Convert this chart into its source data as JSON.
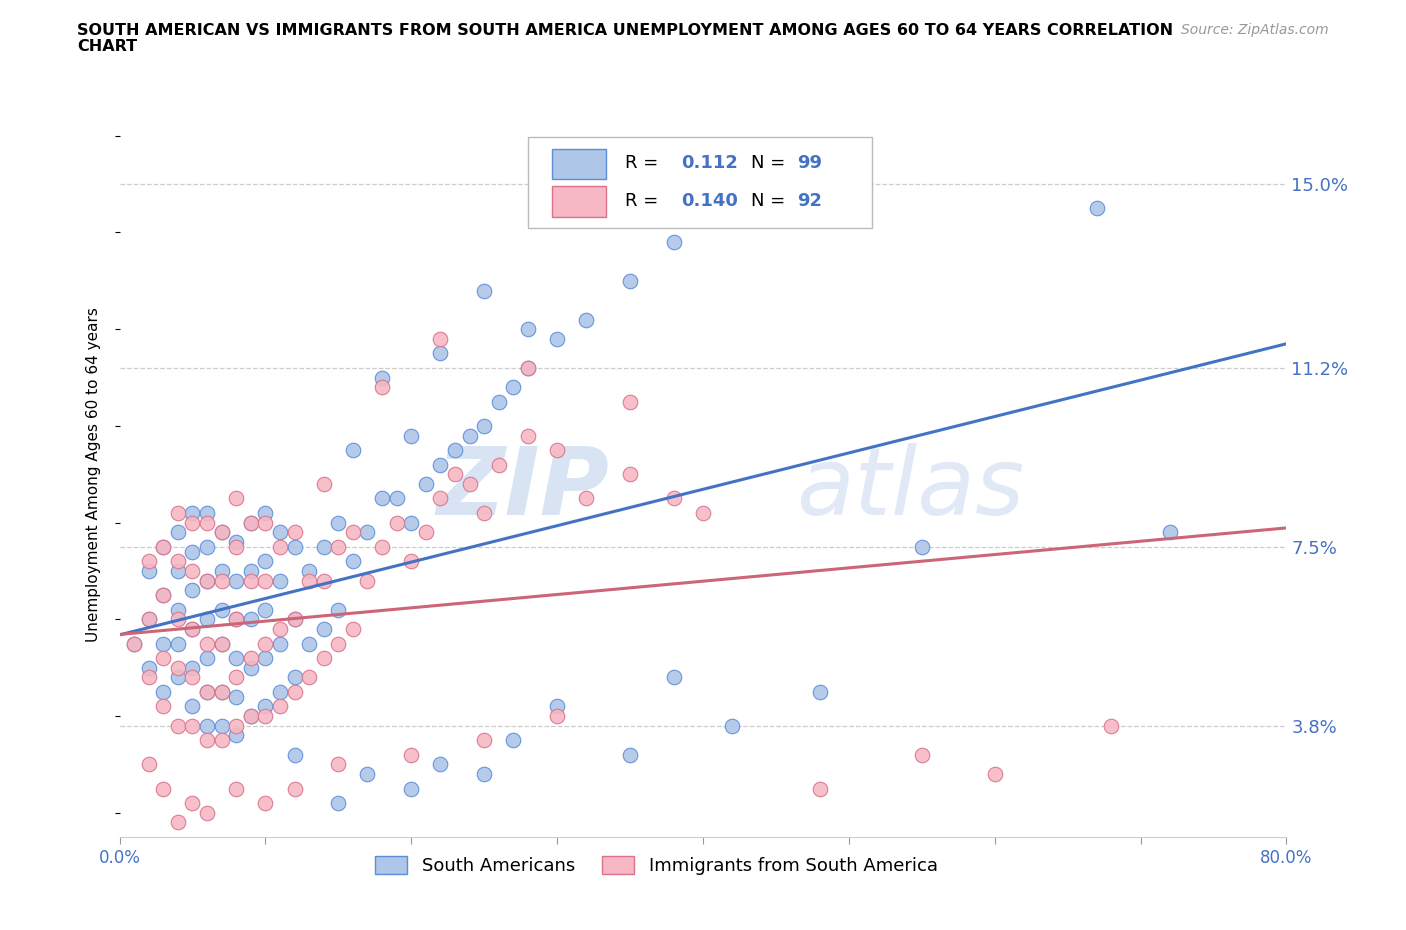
{
  "title_line1": "SOUTH AMERICAN VS IMMIGRANTS FROM SOUTH AMERICA UNEMPLOYMENT AMONG AGES 60 TO 64 YEARS CORRELATION",
  "title_line2": "CHART",
  "source_text": "Source: ZipAtlas.com",
  "ylabel": "Unemployment Among Ages 60 to 64 years",
  "xlim": [
    0,
    0.8
  ],
  "ylim": [
    0.015,
    0.165
  ],
  "yticks": [
    0.038,
    0.075,
    0.112,
    0.15
  ],
  "ytick_labels": [
    "3.8%",
    "7.5%",
    "11.2%",
    "15.0%"
  ],
  "xticks": [
    0.0,
    0.1,
    0.2,
    0.3,
    0.4,
    0.5,
    0.6,
    0.7,
    0.8
  ],
  "xtick_labels": [
    "0.0%",
    "",
    "",
    "",
    "",
    "",
    "",
    "",
    "80.0%"
  ],
  "blue_fill": "#aec6e8",
  "blue_edge": "#5b8dd9",
  "pink_fill": "#f5b8c4",
  "pink_edge": "#d9728a",
  "blue_line_color": "#4472c4",
  "pink_line_color": "#cc6677",
  "R_blue": 0.112,
  "N_blue": 99,
  "R_pink": 0.14,
  "N_pink": 92,
  "blue_scatter_x": [
    0.01,
    0.02,
    0.02,
    0.02,
    0.03,
    0.03,
    0.03,
    0.03,
    0.04,
    0.04,
    0.04,
    0.04,
    0.04,
    0.05,
    0.05,
    0.05,
    0.05,
    0.05,
    0.05,
    0.06,
    0.06,
    0.06,
    0.06,
    0.06,
    0.06,
    0.06,
    0.07,
    0.07,
    0.07,
    0.07,
    0.07,
    0.07,
    0.08,
    0.08,
    0.08,
    0.08,
    0.08,
    0.08,
    0.09,
    0.09,
    0.09,
    0.09,
    0.09,
    0.1,
    0.1,
    0.1,
    0.1,
    0.1,
    0.11,
    0.11,
    0.11,
    0.11,
    0.12,
    0.12,
    0.12,
    0.13,
    0.13,
    0.14,
    0.14,
    0.15,
    0.15,
    0.16,
    0.17,
    0.18,
    0.19,
    0.2,
    0.21,
    0.22,
    0.23,
    0.24,
    0.25,
    0.26,
    0.27,
    0.28,
    0.3,
    0.32,
    0.35,
    0.38,
    0.16,
    0.18,
    0.2,
    0.22,
    0.25,
    0.28,
    0.55,
    0.67,
    0.72,
    0.48,
    0.42,
    0.38,
    0.35,
    0.3,
    0.27,
    0.25,
    0.22,
    0.2,
    0.17,
    0.15,
    0.12
  ],
  "blue_scatter_y": [
    0.055,
    0.05,
    0.06,
    0.07,
    0.045,
    0.055,
    0.065,
    0.075,
    0.048,
    0.055,
    0.062,
    0.07,
    0.078,
    0.042,
    0.05,
    0.058,
    0.066,
    0.074,
    0.082,
    0.038,
    0.045,
    0.052,
    0.06,
    0.068,
    0.075,
    0.082,
    0.038,
    0.045,
    0.055,
    0.062,
    0.07,
    0.078,
    0.036,
    0.044,
    0.052,
    0.06,
    0.068,
    0.076,
    0.04,
    0.05,
    0.06,
    0.07,
    0.08,
    0.042,
    0.052,
    0.062,
    0.072,
    0.082,
    0.045,
    0.055,
    0.068,
    0.078,
    0.048,
    0.06,
    0.075,
    0.055,
    0.07,
    0.058,
    0.075,
    0.062,
    0.08,
    0.072,
    0.078,
    0.085,
    0.085,
    0.08,
    0.088,
    0.092,
    0.095,
    0.098,
    0.1,
    0.105,
    0.108,
    0.112,
    0.118,
    0.122,
    0.13,
    0.138,
    0.095,
    0.11,
    0.098,
    0.115,
    0.128,
    0.12,
    0.075,
    0.145,
    0.078,
    0.045,
    0.038,
    0.048,
    0.032,
    0.042,
    0.035,
    0.028,
    0.03,
    0.025,
    0.028,
    0.022,
    0.032
  ],
  "pink_scatter_x": [
    0.01,
    0.02,
    0.02,
    0.02,
    0.03,
    0.03,
    0.03,
    0.03,
    0.04,
    0.04,
    0.04,
    0.04,
    0.04,
    0.05,
    0.05,
    0.05,
    0.05,
    0.05,
    0.06,
    0.06,
    0.06,
    0.06,
    0.06,
    0.07,
    0.07,
    0.07,
    0.07,
    0.07,
    0.08,
    0.08,
    0.08,
    0.08,
    0.08,
    0.09,
    0.09,
    0.09,
    0.09,
    0.1,
    0.1,
    0.1,
    0.1,
    0.11,
    0.11,
    0.11,
    0.12,
    0.12,
    0.12,
    0.13,
    0.13,
    0.14,
    0.14,
    0.14,
    0.15,
    0.15,
    0.16,
    0.16,
    0.17,
    0.18,
    0.19,
    0.2,
    0.21,
    0.22,
    0.23,
    0.24,
    0.25,
    0.26,
    0.28,
    0.3,
    0.32,
    0.35,
    0.38,
    0.4,
    0.18,
    0.22,
    0.28,
    0.35,
    0.6,
    0.68,
    0.2,
    0.25,
    0.3,
    0.15,
    0.12,
    0.1,
    0.08,
    0.06,
    0.05,
    0.04,
    0.03,
    0.02,
    0.55,
    0.48
  ],
  "pink_scatter_y": [
    0.055,
    0.048,
    0.06,
    0.072,
    0.042,
    0.052,
    0.065,
    0.075,
    0.038,
    0.05,
    0.06,
    0.072,
    0.082,
    0.038,
    0.048,
    0.058,
    0.07,
    0.08,
    0.035,
    0.045,
    0.055,
    0.068,
    0.08,
    0.035,
    0.045,
    0.055,
    0.068,
    0.078,
    0.038,
    0.048,
    0.06,
    0.075,
    0.085,
    0.04,
    0.052,
    0.068,
    0.08,
    0.04,
    0.055,
    0.068,
    0.08,
    0.042,
    0.058,
    0.075,
    0.045,
    0.06,
    0.078,
    0.048,
    0.068,
    0.052,
    0.068,
    0.088,
    0.055,
    0.075,
    0.058,
    0.078,
    0.068,
    0.075,
    0.08,
    0.072,
    0.078,
    0.085,
    0.09,
    0.088,
    0.082,
    0.092,
    0.098,
    0.095,
    0.085,
    0.09,
    0.085,
    0.082,
    0.108,
    0.118,
    0.112,
    0.105,
    0.028,
    0.038,
    0.032,
    0.035,
    0.04,
    0.03,
    0.025,
    0.022,
    0.025,
    0.02,
    0.022,
    0.018,
    0.025,
    0.03,
    0.032,
    0.025
  ],
  "legend_label_blue": "South Americans",
  "legend_label_pink": "Immigrants from South America",
  "watermark_zip": "ZIP",
  "watermark_atlas": "atlas",
  "grid_color": "#cccccc",
  "tick_label_color": "#4472c4",
  "background_color": "#ffffff"
}
